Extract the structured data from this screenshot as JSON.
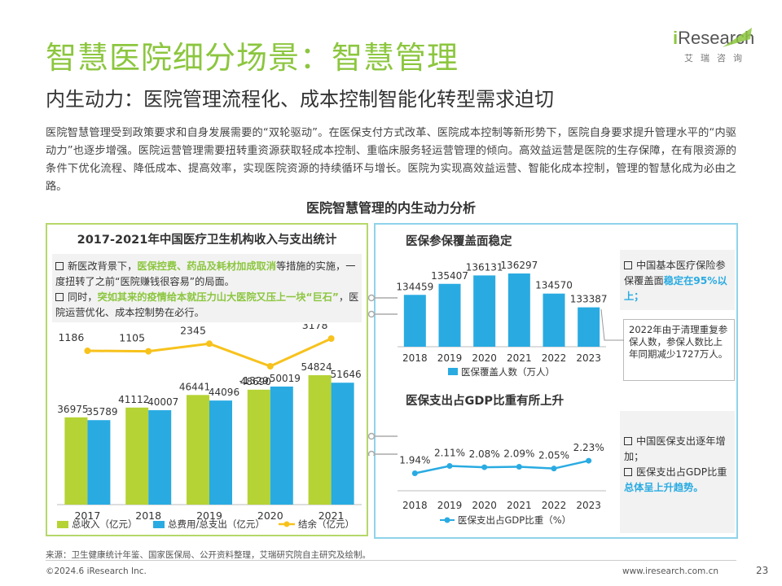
{
  "header": {
    "title": "智慧医院细分场景：智慧管理",
    "subtitle": "内生动力：医院管理流程化、成本控制智能化转型需求迫切",
    "logo_i": "i",
    "logo_rest": "Research",
    "logo_sub": "艾瑞咨询"
  },
  "intro": "医院智慧管理受到政策要求和自身发展需要的“双轮驱动”。在医保支付方式改革、医院成本控制等新形势下，医院自身要求提升管理水平的“内驱动力”也逐步增强。医院运营管理需要扭转重资源获取轻成本控制、重临床服务轻运营管理的倾向。高效益运营是医院的生存保障，在有限资源的条件下优化流程、降低成本、提高效率，实现医院资源的持续循环与增长。医院为实现高效益运营、智能化成本控制，管理的智慧化成为必由之路。",
  "section_title": "医院智慧管理的内生动力分析",
  "left_panel": {
    "title": "2017-2021年中国医疗卫生机构收入与支出统计",
    "note1_a": "新医改背景下，",
    "note1_b": "医保控费、药品及耗材加成取消",
    "note1_c": "等措施的实施，一度扭转了之前“医院赚钱很容易”的局面。",
    "note2_a": "同时，",
    "note2_b": "突如其来的疫情给本就压力山大医院又压上一块“巨石”",
    "note2_c": "，医院运营优化、成本控制势在必行。"
  },
  "right_top": {
    "title": "医保参保覆盖面稳定",
    "note_a": "中国基本医疗保险参保覆盖面",
    "note_b": "稳定在95%以上；",
    "callout": "2022年由于清理重复参保人数，参保人数比上年同期减少1727万人。"
  },
  "right_bottom": {
    "title": "医保支出占GDP比重有所上升",
    "note1": "中国医保支出逐年增加；",
    "note2_a": "医保支出占GDP比重",
    "note2_b": "总体呈上升趋势。"
  },
  "chart_data": [
    {
      "type": "bar",
      "categories": [
        "2017",
        "2018",
        "2019",
        "2020",
        "2021"
      ],
      "series": [
        {
          "name": "总收入（亿元）",
          "type": "bar",
          "color": "#b5d334",
          "values": [
            36975,
            41112,
            46441,
            48690,
            54824
          ],
          "labels": [
            "36975",
            "41112",
            "46441",
            "48690",
            "54824"
          ]
        },
        {
          "name": "总费用/总支出（亿元）",
          "type": "bar",
          "color": "#29abe2",
          "values": [
            35789,
            40007,
            44096,
            50019,
            51646
          ],
          "labels": [
            "35789",
            "40007",
            "44096",
            "50019",
            "51646"
          ]
        },
        {
          "name": "结余（亿元）",
          "type": "line",
          "color": "#f7c21c",
          "values": [
            1186,
            1105,
            2345,
            -1329,
            3178
          ],
          "labels": [
            "1186",
            "1105",
            "2345",
            "-1329",
            "3178"
          ]
        }
      ],
      "ylim": [
        0,
        60000
      ]
    },
    {
      "type": "bar",
      "title": "医保参保覆盖面稳定",
      "categories": [
        "2018",
        "2019",
        "2020",
        "2021",
        "2022",
        "2023"
      ],
      "series": [
        {
          "name": "医保覆盖人数（万人）",
          "color": "#29abe2",
          "values": [
            134459,
            135407,
            136131,
            136297,
            134570,
            133387
          ],
          "labels": [
            "134459",
            "135407",
            "136131",
            "136297",
            "134570",
            "133387"
          ]
        }
      ]
    },
    {
      "type": "line",
      "title": "医保支出占GDP比重有所上升",
      "categories": [
        "2018",
        "2019",
        "2020",
        "2021",
        "2022",
        "2023"
      ],
      "series": [
        {
          "name": "医保支出占GDP比重（%）",
          "color": "#29abe2",
          "values": [
            1.94,
            2.11,
            2.08,
            2.09,
            2.05,
            2.23
          ],
          "labels": [
            "1.94%",
            "2.11%",
            "2.08%",
            "2.09%",
            "2.05%",
            "2.23%"
          ]
        }
      ]
    }
  ],
  "footer": {
    "source": "来源：卫生健康统计年鉴、国家医保局、公开资料整理，艾瑞研究院自主研究及绘制。",
    "copyright": "©2024.6 iResearch Inc.",
    "website": "www.iresearch.com.cn",
    "page": "23"
  }
}
